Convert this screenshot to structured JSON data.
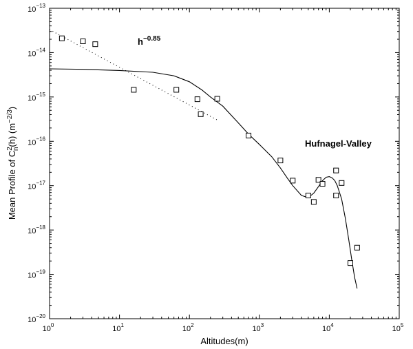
{
  "chart_data": {
    "type": "scatter",
    "x_scale": "log",
    "y_scale": "log",
    "xlim": [
      1,
      100000
    ],
    "ylim": [
      1e-20,
      1e-13
    ],
    "xlabel": "Altitudes(m)",
    "ylabel": {
      "prefix": "Mean Profile of C",
      "sup1": "2",
      "sub": "n",
      "mid": "(h) (m",
      "sup2": "−2/3",
      "suffix": ")"
    },
    "x_ticks": [
      {
        "value": 1,
        "base": "10",
        "exp": "0"
      },
      {
        "value": 10,
        "base": "10",
        "exp": "1"
      },
      {
        "value": 100,
        "base": "10",
        "exp": "2"
      },
      {
        "value": 1000,
        "base": "10",
        "exp": "3"
      },
      {
        "value": 10000,
        "base": "10",
        "exp": "4"
      },
      {
        "value": 100000,
        "base": "10",
        "exp": "5"
      }
    ],
    "y_ticks": [
      {
        "value": 1e-20,
        "base": "10",
        "exp": "−20"
      },
      {
        "value": 1e-19,
        "base": "10",
        "exp": "−19"
      },
      {
        "value": 1e-18,
        "base": "10",
        "exp": "−18"
      },
      {
        "value": 1e-17,
        "base": "10",
        "exp": "−17"
      },
      {
        "value": 1e-16,
        "base": "10",
        "exp": "−16"
      },
      {
        "value": 1e-15,
        "base": "10",
        "exp": "−15"
      },
      {
        "value": 1e-14,
        "base": "10",
        "exp": "−14"
      },
      {
        "value": 1e-13,
        "base": "10",
        "exp": "−13"
      }
    ],
    "measurements": [
      [
        1.5,
        2.1e-14
      ],
      [
        3,
        1.8e-14
      ],
      [
        4.5,
        1.55e-14
      ],
      [
        16,
        1.45e-15
      ],
      [
        65,
        1.45e-15
      ],
      [
        130,
        8.9e-16
      ],
      [
        145,
        4.1e-16
      ],
      [
        250,
        9.1e-16
      ],
      [
        700,
        1.35e-16
      ],
      [
        2000,
        3.7e-17
      ],
      [
        3000,
        1.3e-17
      ],
      [
        5000,
        6e-18
      ],
      [
        6000,
        4.3e-18
      ],
      [
        7000,
        1.35e-17
      ],
      [
        8000,
        1.1e-17
      ],
      [
        12500,
        2.2e-17
      ],
      [
        12500,
        6e-18
      ],
      [
        15000,
        1.15e-17
      ],
      [
        20000,
        1.8e-19
      ],
      [
        25000,
        4e-19
      ]
    ],
    "hufnagel_valley_curve": [
      [
        1,
        4.3e-15
      ],
      [
        3,
        4.2e-15
      ],
      [
        10,
        3.95e-15
      ],
      [
        30,
        3.6e-15
      ],
      [
        60,
        3e-15
      ],
      [
        100,
        2.2e-15
      ],
      [
        150,
        1.45e-15
      ],
      [
        200,
        1e-15
      ],
      [
        300,
        6.2e-16
      ],
      [
        500,
        2.6e-16
      ],
      [
        700,
        1.45e-16
      ],
      [
        1000,
        8.5e-17
      ],
      [
        1500,
        4.5e-17
      ],
      [
        2000,
        2.5e-17
      ],
      [
        2500,
        1.5e-17
      ],
      [
        3000,
        1e-17
      ],
      [
        4000,
        6e-18
      ],
      [
        5000,
        5.4e-18
      ],
      [
        6000,
        6.8e-18
      ],
      [
        7000,
        9.5e-18
      ],
      [
        8000,
        1.3e-17
      ],
      [
        9000,
        1.55e-17
      ],
      [
        10000,
        1.6e-17
      ],
      [
        11000,
        1.5e-17
      ],
      [
        12000,
        1.3e-17
      ],
      [
        13000,
        1e-17
      ],
      [
        15000,
        5e-18
      ],
      [
        17000,
        1.8e-18
      ],
      [
        19000,
        6e-19
      ],
      [
        21000,
        2.1e-19
      ],
      [
        23000,
        8.5e-20
      ],
      [
        25000,
        4.8e-20
      ]
    ],
    "power_law_fit": {
      "label_base": "h",
      "label_exp": "−0.85",
      "points": [
        [
          1,
          3.3e-14
        ],
        [
          250,
          3.03e-16
        ]
      ]
    },
    "curve_label": "Hufnagel-Valley"
  }
}
